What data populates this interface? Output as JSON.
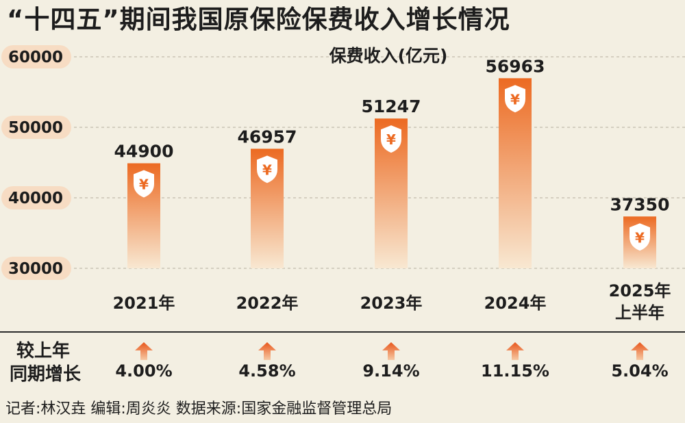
{
  "title": "“十四五”期间我国原保险保费收入增长情况",
  "chart_data": {
    "type": "bar",
    "unit_label": "保费收入(亿元)",
    "categories": [
      "2021年",
      "2022年",
      "2023年",
      "2024年",
      "2025年\n上半年"
    ],
    "values": [
      44900,
      46957,
      51247,
      56963,
      37350
    ],
    "y_ticks": [
      "60000",
      "50000",
      "40000",
      "30000"
    ],
    "ylim": [
      30000,
      60000
    ],
    "grid": true,
    "bar_icon": "yuan-shield-icon",
    "colors": {
      "bar_top": "#ec6a22",
      "bar_bottom": "#f8e8d2",
      "tick_bg": "#f7dcc3",
      "grid": "#c9c3b5"
    }
  },
  "growth": {
    "label_line1": "较上年",
    "label_line2": "同期增长",
    "arrow_icon": "up-arrow-icon",
    "values": [
      "4.00%",
      "4.58%",
      "9.14%",
      "11.15%",
      "5.04%"
    ]
  },
  "footer": "记者:林汉垚  编辑:周炎炎  数据来源:国家金融监督管理总局"
}
